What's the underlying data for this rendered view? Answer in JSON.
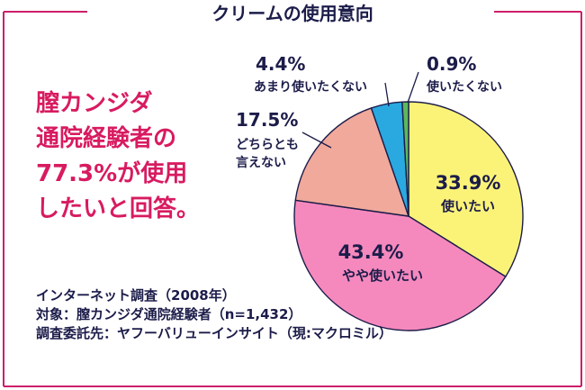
{
  "title": "クリームの使用意向",
  "headline": [
    "膣カンジダ",
    "通院経験者の",
    "77.3%が使用",
    "したいと回答。"
  ],
  "notes": [
    "インターネット調査（2008年）",
    "対象：膣カンジダ通院経験者（n=1,432）",
    "調査委託先：ヤフーバリューインサイト（現:マクロミル）"
  ],
  "colors": {
    "frame": "#cc1f6a",
    "text": "#1c1c4a",
    "headline": "#d81b60"
  },
  "chart_data": {
    "type": "pie",
    "categories": [
      "使いたい",
      "やや使いたい",
      "どちらとも言えない",
      "あまり使いたくない",
      "使いたくない"
    ],
    "values": [
      33.9,
      43.4,
      17.5,
      4.4,
      0.9
    ],
    "value_labels": [
      "33.9%",
      "43.4%",
      "17.5%",
      "4.4%",
      "0.9%"
    ],
    "colors": [
      "#fbf378",
      "#f589bd",
      "#f0a99b",
      "#29a9e0",
      "#5cb85c"
    ],
    "start": "top, clockwise"
  }
}
